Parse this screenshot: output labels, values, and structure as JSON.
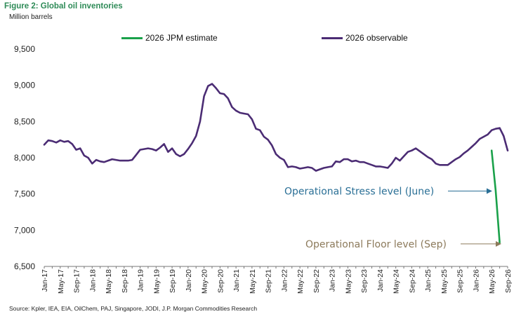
{
  "figure_title": "Figure 2: Global oil inventories",
  "units_label": "Million barrels",
  "source": "Source: Kpler, IEA, EIA, OilChem, PAJ, Singapore, JODI, J.P. Morgan Commodities Research",
  "colors": {
    "observable": "#4b2c74",
    "estimate": "#1aa14a",
    "stress": "#2a6f96",
    "floor": "#8c7a5b"
  },
  "chart_data": {
    "type": "line",
    "ylabel": "Million barrels",
    "ylim": [
      6500,
      9500
    ],
    "yticks": [
      6500,
      7000,
      7500,
      8000,
      8500,
      9000,
      9500
    ],
    "grid": false,
    "legend_position": "top",
    "x_tick_labels": [
      "Jan-17",
      "May-17",
      "Sep-17",
      "Jan-18",
      "May-18",
      "Sep-18",
      "Jan-19",
      "May-19",
      "Sep-19",
      "Jan-20",
      "May-20",
      "Sep-20",
      "Jan-21",
      "May-21",
      "Sep-21",
      "Jan-22",
      "May-22",
      "Sep-22",
      "Jan-23",
      "May-23",
      "Sep-23",
      "Jan-24",
      "May-24",
      "Sep-24",
      "Jan-25",
      "May-25",
      "Sep-25",
      "Jan-26",
      "May-26",
      "Sep-26"
    ],
    "series": [
      {
        "name": "2026 observable",
        "start": "Jan-17",
        "values": [
          8180,
          8240,
          8230,
          8210,
          8240,
          8220,
          8230,
          8190,
          8110,
          8130,
          8030,
          8000,
          7920,
          7970,
          7950,
          7940,
          7960,
          7980,
          7970,
          7960,
          7960,
          7960,
          7970,
          8040,
          8110,
          8120,
          8130,
          8120,
          8100,
          8140,
          8190,
          8080,
          8130,
          8050,
          8020,
          8050,
          8120,
          8200,
          8300,
          8500,
          8850,
          8990,
          9020,
          8960,
          8890,
          8880,
          8820,
          8700,
          8650,
          8620,
          8610,
          8600,
          8530,
          8400,
          8380,
          8290,
          8250,
          8170,
          8050,
          8000,
          7970,
          7870,
          7880,
          7870,
          7850,
          7860,
          7870,
          7860,
          7820,
          7840,
          7860,
          7870,
          7880,
          7950,
          7940,
          7980,
          7980,
          7950,
          7960,
          7940,
          7940,
          7920,
          7900,
          7880,
          7880,
          7870,
          7860,
          7920,
          8000,
          7960,
          8020,
          8080,
          8100,
          8130,
          8090,
          8050,
          8010,
          7980,
          7920,
          7900,
          7900,
          7900,
          7940,
          7980,
          8010,
          8060,
          8100,
          8150,
          8200,
          8260,
          8290,
          8320,
          8380,
          8400,
          8410,
          8300,
          8100
        ]
      },
      {
        "name": "2026 JPM estimate",
        "start": "May-26",
        "values": [
          8100,
          7550,
          6830
        ]
      }
    ],
    "annotations": [
      {
        "text": "Operational Stress level (June)",
        "month": "Jun-26",
        "value": 7550
      },
      {
        "text": "Operational Floor level (Sep)",
        "month": "Sep-26",
        "value": 6830
      }
    ]
  }
}
